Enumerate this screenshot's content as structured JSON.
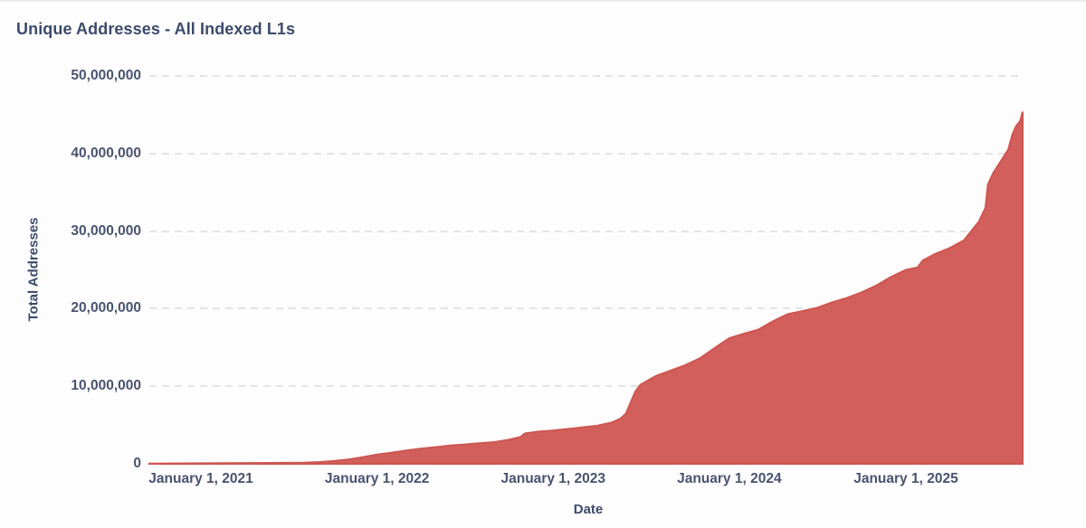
{
  "page": {
    "title": "Unique Addresses - All Indexed L1s"
  },
  "colors": {
    "area_fill": "#d25f5b",
    "area_edge": "#cd5650",
    "text_dark": "#3e4a6b",
    "tick_text": "#49536f",
    "gridline": "#e4e4e6",
    "page_top_border": "#ececec",
    "background": "#fdfdfd"
  },
  "chart_data": {
    "type": "area",
    "title": "Unique Addresses - All Indexed L1s",
    "xlabel": "Date",
    "ylabel": "Total Addresses",
    "legend": "none",
    "grid": "horizontal-dashed",
    "ylim": [
      0,
      50000000
    ],
    "x_domain": [
      "2020-09-16",
      "2025-08-31"
    ],
    "y_ticks": [
      {
        "label": "0",
        "value": 0
      },
      {
        "label": "10,000,000",
        "value": 10000000
      },
      {
        "label": "20,000,000",
        "value": 20000000
      },
      {
        "label": "30,000,000",
        "value": 30000000
      },
      {
        "label": "40,000,000",
        "value": 40000000
      },
      {
        "label": "50,000,000",
        "value": 50000000
      }
    ],
    "x_ticks": [
      {
        "label": "January 1, 2021",
        "date": "2021-01-01"
      },
      {
        "label": "January 1, 2022",
        "date": "2022-01-01"
      },
      {
        "label": "January 1, 2023",
        "date": "2023-01-01"
      },
      {
        "label": "January 1, 2024",
        "date": "2024-01-01"
      },
      {
        "label": "January 1, 2025",
        "date": "2025-01-01"
      }
    ],
    "series": [
      {
        "name": "Total Addresses",
        "points": [
          [
            "2020-09-16",
            40000
          ],
          [
            "2020-12-01",
            60000
          ],
          [
            "2021-03-01",
            90000
          ],
          [
            "2021-06-01",
            120000
          ],
          [
            "2021-08-01",
            150000
          ],
          [
            "2021-09-01",
            220000
          ],
          [
            "2021-10-01",
            350000
          ],
          [
            "2021-11-01",
            550000
          ],
          [
            "2021-12-01",
            850000
          ],
          [
            "2022-01-01",
            1200000
          ],
          [
            "2022-02-01",
            1450000
          ],
          [
            "2022-03-01",
            1700000
          ],
          [
            "2022-04-01",
            1950000
          ],
          [
            "2022-05-01",
            2150000
          ],
          [
            "2022-06-01",
            2350000
          ],
          [
            "2022-07-01",
            2500000
          ],
          [
            "2022-08-01",
            2650000
          ],
          [
            "2022-09-01",
            2800000
          ],
          [
            "2022-10-01",
            3100000
          ],
          [
            "2022-10-25",
            3450000
          ],
          [
            "2022-11-03",
            3900000
          ],
          [
            "2022-12-01",
            4150000
          ],
          [
            "2023-01-01",
            4300000
          ],
          [
            "2023-02-01",
            4500000
          ],
          [
            "2023-03-01",
            4700000
          ],
          [
            "2023-04-01",
            4900000
          ],
          [
            "2023-05-01",
            5300000
          ],
          [
            "2023-05-20",
            5800000
          ],
          [
            "2023-06-01",
            6500000
          ],
          [
            "2023-06-20",
            9300000
          ],
          [
            "2023-07-01",
            10200000
          ],
          [
            "2023-08-01",
            11300000
          ],
          [
            "2023-09-01",
            12000000
          ],
          [
            "2023-10-01",
            12700000
          ],
          [
            "2023-11-01",
            13600000
          ],
          [
            "2023-12-01",
            14900000
          ],
          [
            "2024-01-01",
            16200000
          ],
          [
            "2024-02-01",
            16800000
          ],
          [
            "2024-03-01",
            17300000
          ],
          [
            "2024-04-01",
            18400000
          ],
          [
            "2024-05-01",
            19300000
          ],
          [
            "2024-06-01",
            19700000
          ],
          [
            "2024-07-01",
            20100000
          ],
          [
            "2024-08-01",
            20800000
          ],
          [
            "2024-09-01",
            21400000
          ],
          [
            "2024-10-01",
            22100000
          ],
          [
            "2024-11-01",
            23000000
          ],
          [
            "2024-12-01",
            24100000
          ],
          [
            "2025-01-01",
            25000000
          ],
          [
            "2025-01-25",
            25300000
          ],
          [
            "2025-02-05",
            26200000
          ],
          [
            "2025-03-01",
            27000000
          ],
          [
            "2025-04-01",
            27800000
          ],
          [
            "2025-05-01",
            28800000
          ],
          [
            "2025-06-01",
            31200000
          ],
          [
            "2025-06-15",
            33000000
          ],
          [
            "2025-06-20",
            36000000
          ],
          [
            "2025-07-01",
            37500000
          ],
          [
            "2025-08-01",
            40500000
          ],
          [
            "2025-08-10",
            42500000
          ],
          [
            "2025-08-18",
            43600000
          ],
          [
            "2025-08-26",
            44200000
          ],
          [
            "2025-08-31",
            45400000
          ]
        ]
      }
    ]
  }
}
